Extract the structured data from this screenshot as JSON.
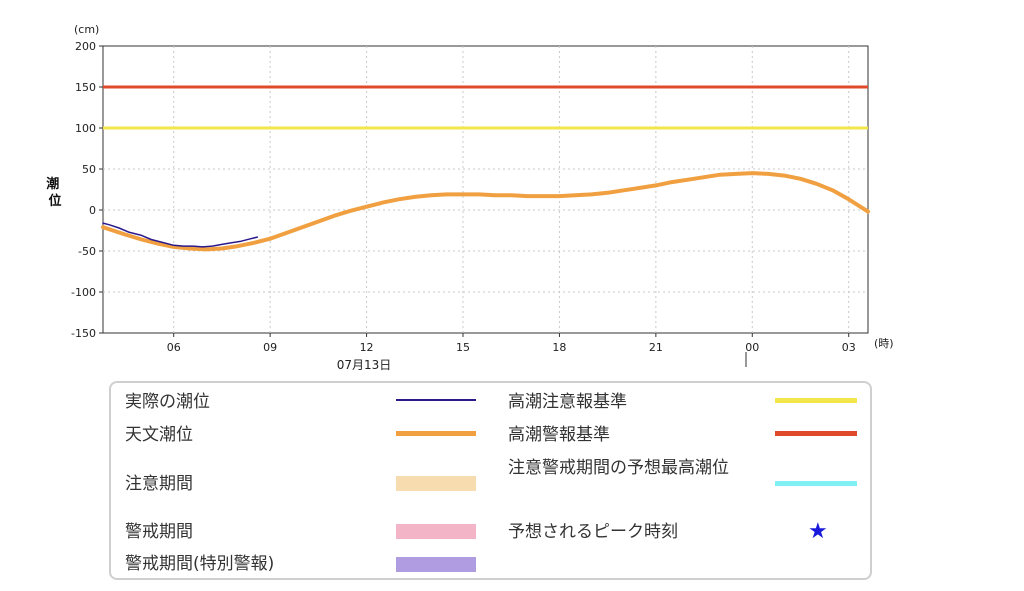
{
  "chart_data": {
    "type": "line",
    "y_unit": "(cm)",
    "ylabel": "潮位",
    "x_unit": "(時)",
    "date_label": "07月13日",
    "ylim": [
      -150,
      200
    ],
    "yticks": [
      200,
      150,
      100,
      50,
      0,
      -50,
      -100,
      -150
    ],
    "xlim": [
      3.8,
      27.6
    ],
    "xticks": [
      {
        "h": 6,
        "label": "06"
      },
      {
        "h": 9,
        "label": "09"
      },
      {
        "h": 12,
        "label": "12"
      },
      {
        "h": 15,
        "label": "15"
      },
      {
        "h": 18,
        "label": "18"
      },
      {
        "h": 21,
        "label": "21"
      },
      {
        "h": 24,
        "label": "00"
      },
      {
        "h": 27,
        "label": "03"
      }
    ],
    "grid": true,
    "thresholds": [
      {
        "name": "高潮警報基準",
        "value": 150,
        "color": "#e04a2a"
      },
      {
        "name": "高潮注意報基準",
        "value": 100,
        "color": "#f2e64a"
      }
    ],
    "series": [
      {
        "name": "天文潮位",
        "color": "#f0a040",
        "x": [
          3.8,
          4.5,
          5.0,
          5.5,
          6.0,
          6.5,
          7.0,
          7.5,
          8.0,
          8.5,
          9.0,
          9.5,
          10.0,
          10.5,
          11.0,
          11.5,
          12.0,
          12.5,
          13.0,
          13.5,
          14.0,
          14.5,
          15.0,
          15.5,
          16.0,
          16.5,
          17.0,
          17.5,
          18.0,
          18.5,
          19.0,
          19.5,
          20.0,
          20.5,
          21.0,
          21.5,
          22.0,
          22.5,
          23.0,
          23.5,
          24.0,
          24.5,
          25.0,
          25.5,
          26.0,
          26.5,
          27.0,
          27.6
        ],
        "values": [
          -21,
          -30,
          -36,
          -41,
          -45,
          -47,
          -48,
          -47,
          -44,
          -40,
          -35,
          -28,
          -21,
          -14,
          -7,
          -1,
          4,
          9,
          13,
          16,
          18,
          19,
          19,
          19,
          18,
          18,
          17,
          17,
          17,
          18,
          19,
          21,
          24,
          27,
          30,
          34,
          37,
          40,
          43,
          44,
          45,
          44,
          42,
          38,
          32,
          24,
          13,
          -2
        ]
      },
      {
        "name": "実際の潮位",
        "color": "#2a1a8c",
        "x": [
          3.8,
          4.0,
          4.3,
          4.6,
          5.0,
          5.3,
          5.6,
          6.0,
          6.3,
          6.6,
          6.9,
          7.2,
          7.5,
          7.8,
          8.1,
          8.4,
          8.6
        ],
        "values": [
          -16,
          -18,
          -22,
          -27,
          -31,
          -36,
          -39,
          -43,
          -44,
          -44,
          -45,
          -44,
          -42,
          -40,
          -38,
          -35,
          -33
        ]
      }
    ]
  },
  "legend": {
    "actual": "実際の潮位",
    "astro": "天文潮位",
    "caution_period": "注意期間",
    "warning_period": "警戒期間",
    "special_period": "警戒期間(特別警報)",
    "high_tide_advisory": "高潮注意報基準",
    "high_tide_warning": "高潮警報基準",
    "forecast_max": "注意警戒期間の予想最高潮位",
    "peak_time": "予想されるピーク時刻",
    "colors": {
      "actual": "#2a1a8c",
      "astro": "#f0a040",
      "caution_period": "#f7dcb0",
      "warning_period": "#f4b4c8",
      "special_period": "#b09ce0",
      "high_tide_advisory": "#f2e64a",
      "high_tide_warning": "#e04a2a",
      "forecast_max": "#7ff0f4",
      "peak_time": "#1a1adc"
    }
  }
}
